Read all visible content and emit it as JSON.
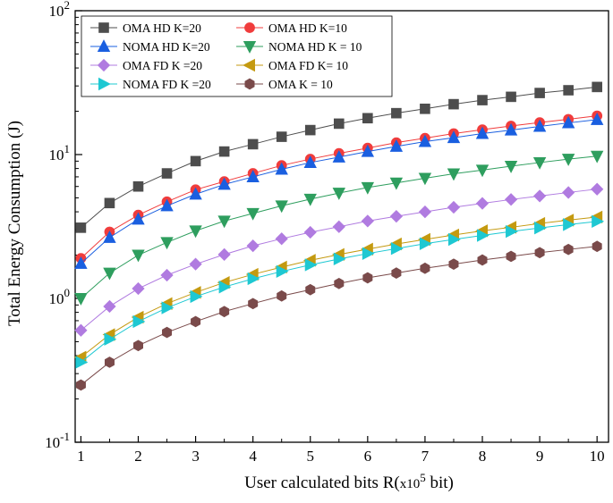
{
  "chart_data": {
    "type": "line",
    "title": "",
    "xlabel_main": "User calculated bits R(",
    "xlabel_unit_a": "x10",
    "xlabel_unit_sup": "5",
    "xlabel_unit_b": " bit)",
    "ylabel": "Total Energy Consumption (J)",
    "yscale": "log",
    "xlim": [
      0.9,
      10.2
    ],
    "ylim": [
      0.1,
      100
    ],
    "x_ticks": [
      1,
      2,
      3,
      4,
      5,
      6,
      7,
      8,
      9,
      10
    ],
    "x_tick_labels": [
      "1",
      "2",
      "3",
      "4",
      "5",
      "6",
      "7",
      "8",
      "9",
      "10"
    ],
    "y_ticks": [
      {
        "value": 0.1,
        "base": "10",
        "exp": "-1"
      },
      {
        "value": 1,
        "base": "10",
        "exp": "0"
      },
      {
        "value": 10,
        "base": "10",
        "exp": "1"
      },
      {
        "value": 100,
        "base": "10",
        "exp": "2"
      }
    ],
    "x": [
      1,
      1.5,
      2,
      2.5,
      3,
      3.5,
      4,
      4.5,
      5,
      5.5,
      6,
      6.5,
      7,
      7.5,
      8,
      8.5,
      9,
      9.5,
      10
    ],
    "legend_position": "top-left",
    "series": [
      {
        "name": "OMA HD K=20",
        "color": "#4d4d4d",
        "marker": "square",
        "values": [
          3.1,
          4.6,
          6.0,
          7.4,
          9.0,
          10.5,
          11.8,
          13.3,
          14.8,
          16.4,
          17.9,
          19.4,
          20.8,
          22.4,
          23.9,
          25.2,
          26.8,
          28.0,
          29.5
        ]
      },
      {
        "name": "OMA HD K=10",
        "color": "#f03c3c",
        "marker": "circle",
        "values": [
          1.9,
          2.9,
          3.8,
          4.7,
          5.7,
          6.5,
          7.4,
          8.4,
          9.3,
          10.2,
          11.1,
          12.1,
          13.0,
          14.0,
          14.9,
          15.8,
          16.7,
          17.6,
          18.6
        ]
      },
      {
        "name": "NOMA HD K=20",
        "color": "#1a5fe0",
        "marker": "triangle-up",
        "values": [
          1.75,
          2.65,
          3.55,
          4.4,
          5.3,
          6.2,
          7.0,
          7.9,
          8.8,
          9.6,
          10.5,
          11.4,
          12.3,
          13.1,
          14.0,
          14.8,
          15.7,
          16.6,
          17.5
        ]
      },
      {
        "name": "NOMA HD K = 10",
        "color": "#2e9e5e",
        "marker": "triangle-down",
        "values": [
          1.0,
          1.5,
          2.0,
          2.45,
          2.95,
          3.45,
          3.9,
          4.4,
          4.9,
          5.4,
          5.9,
          6.35,
          6.85,
          7.35,
          7.8,
          8.3,
          8.8,
          9.3,
          9.75
        ]
      },
      {
        "name": "OMA FD K =20",
        "color": "#b07be0",
        "marker": "diamond",
        "values": [
          0.6,
          0.88,
          1.17,
          1.45,
          1.73,
          2.02,
          2.32,
          2.6,
          2.88,
          3.15,
          3.45,
          3.72,
          4.0,
          4.3,
          4.58,
          4.87,
          5.15,
          5.45,
          5.75
        ]
      },
      {
        "name": "OMA FD K= 10",
        "color": "#c49a10",
        "marker": "triangle-left",
        "values": [
          0.39,
          0.56,
          0.74,
          0.92,
          1.1,
          1.29,
          1.47,
          1.65,
          1.84,
          2.02,
          2.2,
          2.39,
          2.57,
          2.76,
          2.95,
          3.12,
          3.32,
          3.5,
          3.68
        ]
      },
      {
        "name": "NOMA FD K =20",
        "color": "#1ec8d2",
        "marker": "triangle-right",
        "values": [
          0.36,
          0.52,
          0.69,
          0.86,
          1.03,
          1.2,
          1.37,
          1.54,
          1.71,
          1.88,
          2.05,
          2.22,
          2.4,
          2.57,
          2.74,
          2.92,
          3.09,
          3.26,
          3.43
        ]
      },
      {
        "name": "OMA K = 10",
        "color": "#7a4a4a",
        "marker": "hexagon",
        "values": [
          0.25,
          0.36,
          0.47,
          0.58,
          0.69,
          0.81,
          0.92,
          1.04,
          1.15,
          1.27,
          1.39,
          1.5,
          1.62,
          1.73,
          1.85,
          1.96,
          2.08,
          2.19,
          2.3
        ]
      }
    ]
  }
}
